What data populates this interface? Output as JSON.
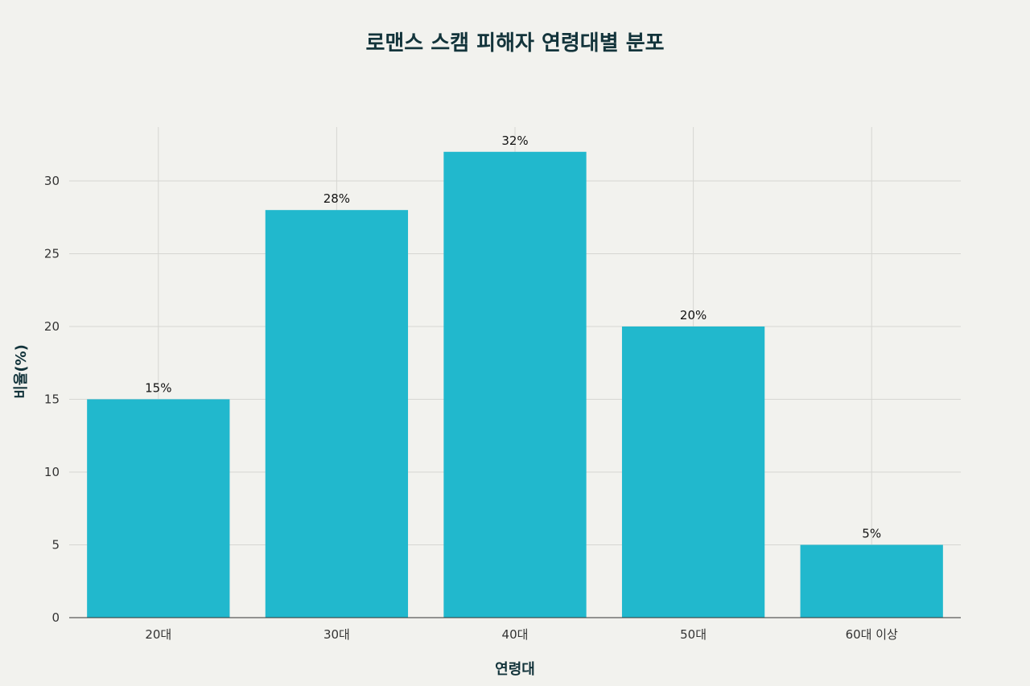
{
  "chart_data": {
    "type": "bar",
    "title": "로맨스 스캠 피해자 연령대별 분포",
    "xlabel": "연령대",
    "ylabel": "비율(%)",
    "categories": [
      "20대",
      "30대",
      "40대",
      "50대",
      "60대 이상"
    ],
    "values": [
      15,
      28,
      32,
      20,
      5
    ],
    "data_labels": [
      "15%",
      "28%",
      "32%",
      "20%",
      "5%"
    ],
    "ylim": [
      0,
      33.7
    ],
    "yticks": [
      0,
      5,
      10,
      15,
      20,
      25,
      30
    ],
    "grid": true,
    "legend": "none",
    "bar_color": "#21b8cd",
    "background_color": "#f2f2ee"
  }
}
